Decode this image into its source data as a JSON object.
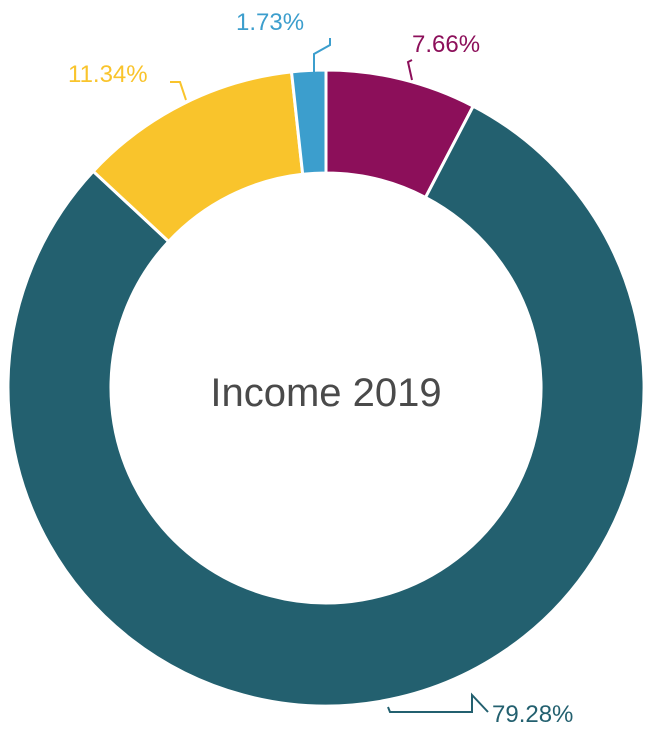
{
  "chart_data": {
    "type": "pie",
    "title": "Income 2019",
    "values": [
      7.66,
      79.28,
      11.34,
      1.73
    ],
    "labels": [
      "7.66%",
      "79.28%",
      "11.34%",
      "1.73%"
    ],
    "colors": [
      "#8c0f5a",
      "#23606f",
      "#f9c42c",
      "#3c9ecd"
    ],
    "donut": true
  }
}
